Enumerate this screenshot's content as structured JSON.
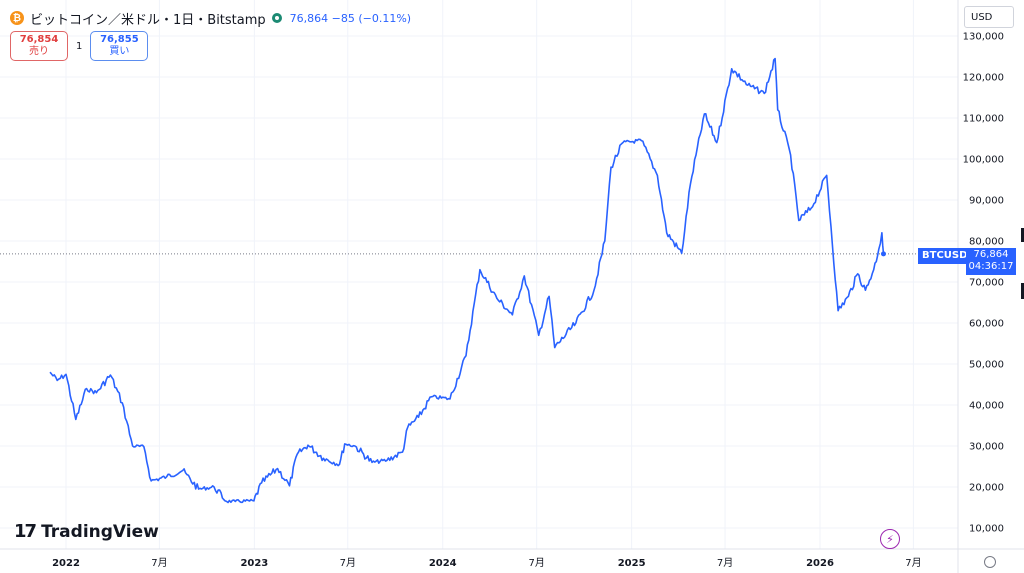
{
  "header": {
    "coin_icon": "bitcoin-icon",
    "coin_glyph": "₿",
    "title": "ビットコイン／米ドル・1日・Bitstamp",
    "price_line": "76,864 −85 (−0.11%)"
  },
  "trade": {
    "sell_price": "76,854",
    "sell_label": "売り",
    "spread": "1",
    "buy_price": "76,855",
    "buy_label": "買い"
  },
  "currency": "USD",
  "last_price": {
    "symbol": "BTCUSD",
    "price": "76,864",
    "countdown": "04:36:17"
  },
  "watermark": {
    "logo": "17",
    "text": "TradingView"
  },
  "flash_icon": "lightning-icon",
  "settings_icon": "gear-icon",
  "colors": {
    "line": "#2962ff",
    "sell": "#e03e3e",
    "buy": "#2962ff"
  },
  "chart_data": {
    "type": "line",
    "series": [
      {
        "name": "",
        "x": [
          "2021-12-01",
          "2021-12-15",
          "2022-01-01",
          "2022-01-20",
          "2022-02-10",
          "2022-03-01",
          "2022-03-28",
          "2022-04-20",
          "2022-05-10",
          "2022-06-01",
          "2022-06-15",
          "2022-07-15",
          "2022-08-15",
          "2022-09-15",
          "2022-10-15",
          "2022-11-08",
          "2022-11-25",
          "2022-12-31",
          "2023-01-15",
          "2023-02-15",
          "2023-03-10",
          "2023-03-25",
          "2023-04-15",
          "2023-05-15",
          "2023-06-15",
          "2023-06-25",
          "2023-07-15",
          "2023-08-17",
          "2023-09-15",
          "2023-10-15",
          "2023-10-25",
          "2023-11-15",
          "2023-12-10",
          "2024-01-15",
          "2024-02-15",
          "2024-03-13",
          "2024-04-15",
          "2024-05-15",
          "2024-06-07",
          "2024-07-05",
          "2024-07-25",
          "2024-08-05",
          "2024-09-15",
          "2024-10-20",
          "2024-11-10",
          "2024-11-22",
          "2024-12-15",
          "2025-01-20",
          "2025-02-20",
          "2025-03-10",
          "2025-04-08",
          "2025-04-25",
          "2025-05-22",
          "2025-06-15",
          "2025-07-14",
          "2025-08-14",
          "2025-09-15",
          "2025-10-06",
          "2025-10-11",
          "2025-11-05",
          "2025-11-21",
          "2025-12-15",
          "2026-01-14",
          "2026-02-05",
          "2026-02-25",
          "2026-03-15",
          "2026-03-30",
          "2026-04-15",
          "2026-04-25",
          "2026-05-01",
          "2026-05-04"
        ],
        "y": [
          48000,
          46000,
          47500,
          36500,
          44000,
          43000,
          47300,
          40500,
          30000,
          29800,
          21500,
          22500,
          24000,
          19500,
          20000,
          16500,
          16500,
          16600,
          21000,
          24500,
          20300,
          28000,
          30200,
          27000,
          25500,
          30500,
          30000,
          26000,
          26500,
          28500,
          34500,
          37000,
          42000,
          41500,
          52000,
          73000,
          66000,
          62000,
          71500,
          57000,
          66500,
          54000,
          60000,
          68000,
          80000,
          98000,
          104000,
          104500,
          96000,
          82000,
          77000,
          94000,
          111000,
          104000,
          122000,
          118000,
          116000,
          124500,
          112000,
          101000,
          85000,
          88000,
          96000,
          63000,
          66500,
          72000,
          68000,
          73000,
          78000,
          82000,
          76864
        ]
      }
    ],
    "x_ticks": [
      "2022",
      "7月",
      "2023",
      "7月",
      "2024",
      "7月",
      "2025",
      "7月",
      "2026",
      "7月"
    ],
    "y_ticks": [
      10000,
      20000,
      30000,
      40000,
      50000,
      60000,
      70000,
      80000,
      90000,
      100000,
      110000,
      120000,
      130000
    ],
    "y_tick_labels": [
      "10,000",
      "20,000",
      "30,000",
      "40,000",
      "50,000",
      "60,000",
      "70,000",
      "80,000",
      "90,000",
      "100,000",
      "110,000",
      "120,000",
      "130,000"
    ],
    "ylim": [
      5000,
      131000
    ],
    "scale": "linear",
    "grid": true,
    "last_value": 76864
  }
}
